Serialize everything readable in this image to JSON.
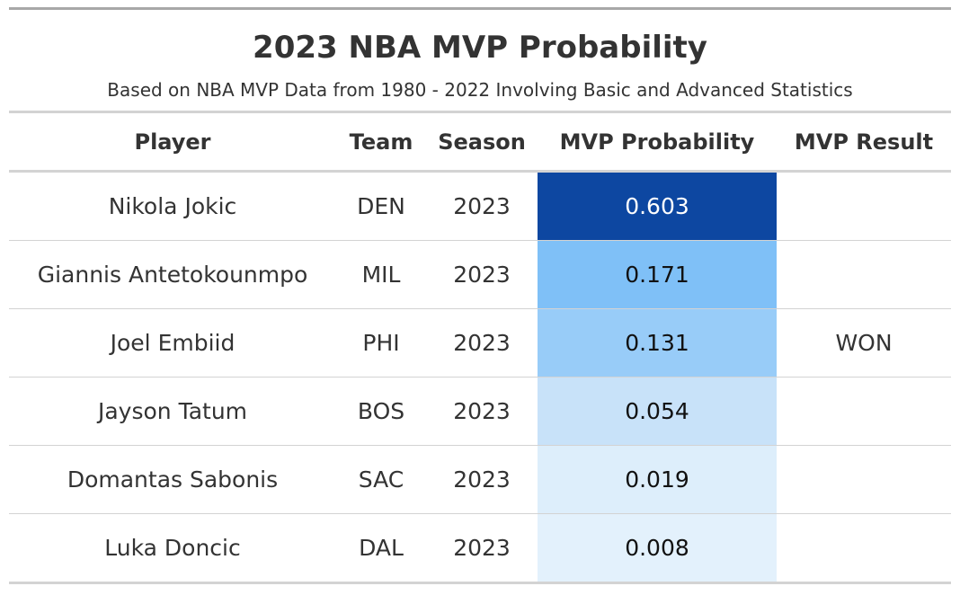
{
  "table": {
    "title": "2023 NBA MVP Probability",
    "subtitle": "Based on NBA MVP Data from 1980 - 2022 Involving Basic and Advanced Statistics",
    "columns": [
      "Player",
      "Team",
      "Season",
      "MVP Probability",
      "MVP Result"
    ],
    "rows": [
      {
        "player": "Nikola Jokic",
        "team": "DEN",
        "season": "2023",
        "probability": "0.603",
        "result": "",
        "cell_color": "#0d47a1",
        "text_color": "#ffffff"
      },
      {
        "player": "Giannis Antetokounmpo",
        "team": "MIL",
        "season": "2023",
        "probability": "0.171",
        "result": "",
        "cell_color": "#7fc0f7",
        "text_color": "#111111"
      },
      {
        "player": "Joel Embiid",
        "team": "PHI",
        "season": "2023",
        "probability": "0.131",
        "result": "WON",
        "cell_color": "#98ccf8",
        "text_color": "#111111"
      },
      {
        "player": "Jayson Tatum",
        "team": "BOS",
        "season": "2023",
        "probability": "0.054",
        "result": "",
        "cell_color": "#c8e2f9",
        "text_color": "#111111"
      },
      {
        "player": "Domantas Sabonis",
        "team": "SAC",
        "season": "2023",
        "probability": "0.019",
        "result": "",
        "cell_color": "#ddeefb",
        "text_color": "#111111"
      },
      {
        "player": "Luka Doncic",
        "team": "DAL",
        "season": "2023",
        "probability": "0.008",
        "result": "",
        "cell_color": "#e3f1fc",
        "text_color": "#111111"
      }
    ]
  }
}
